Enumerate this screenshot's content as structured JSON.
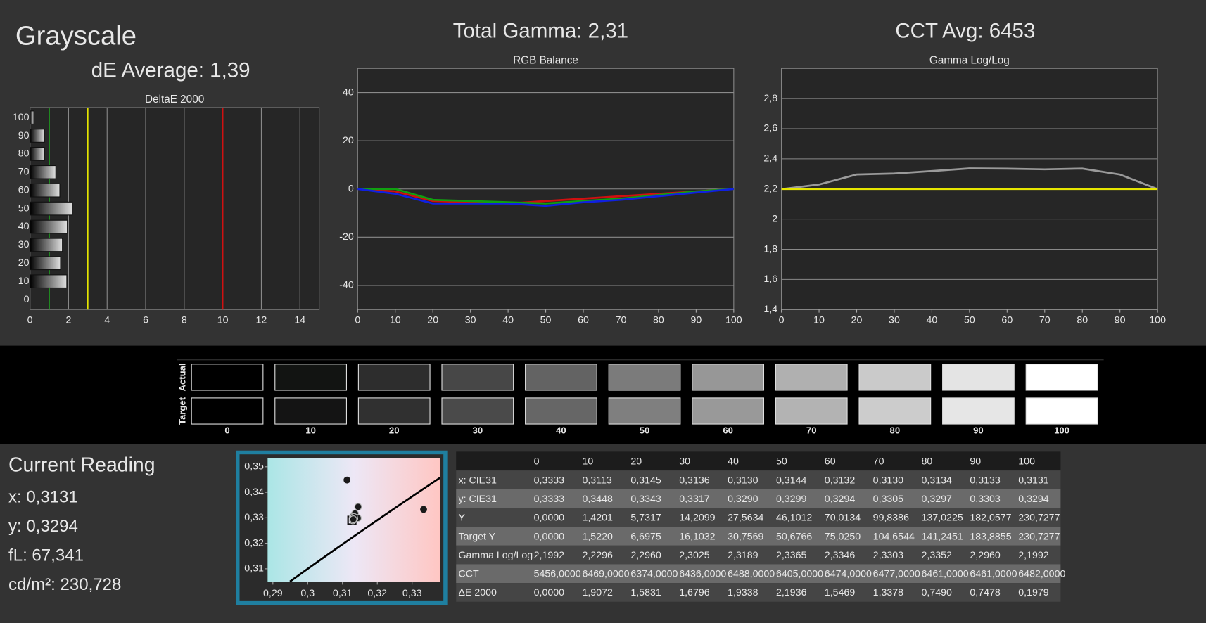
{
  "header": {
    "title": "Grayscale",
    "de_average": "dE Average: 1,39",
    "total_gamma": "Total Gamma: 2,31",
    "cct_avg": "CCT Avg: 6453"
  },
  "chart_data": [
    {
      "type": "bar",
      "horizontal": true,
      "title": "DeltaE 2000",
      "categories": [
        "0",
        "10",
        "20",
        "30",
        "40",
        "50",
        "60",
        "70",
        "80",
        "90",
        "100"
      ],
      "values": [
        0,
        1.9072,
        1.5831,
        1.6796,
        1.9338,
        2.1936,
        1.5469,
        1.3378,
        0.749,
        0.7478,
        0.1979
      ],
      "color": "#e0e0e0",
      "xlim": [
        0,
        15
      ],
      "xticks": [
        0,
        2,
        4,
        6,
        8,
        10,
        12,
        14
      ],
      "grid": true,
      "reference_lines": [
        {
          "value": 1,
          "color": "#1f9a1f"
        },
        {
          "value": 3,
          "color": "#e6e600"
        },
        {
          "value": 10,
          "color": "#d01010"
        }
      ]
    },
    {
      "type": "line",
      "title": "RGB Balance",
      "x": [
        0,
        10,
        20,
        30,
        40,
        50,
        60,
        70,
        80,
        90,
        100
      ],
      "xlim": [
        0,
        100
      ],
      "xticks": [
        0,
        10,
        20,
        30,
        40,
        50,
        60,
        70,
        80,
        90,
        100
      ],
      "ylim": [
        -50,
        50
      ],
      "yticks": [
        -40,
        -20,
        0,
        20,
        40
      ],
      "grid": true,
      "series": [
        {
          "color": "#d01010",
          "values": [
            0,
            -1,
            -5,
            -5.5,
            -6,
            -5,
            -4,
            -3,
            -2,
            -1,
            0
          ]
        },
        {
          "color": "#10a010",
          "values": [
            0,
            0,
            -4.5,
            -5,
            -5.5,
            -6,
            -5,
            -4,
            -2.5,
            -1,
            0
          ]
        },
        {
          "color": "#1020e0",
          "values": [
            0,
            -2,
            -6,
            -6,
            -6,
            -7,
            -5.5,
            -4.5,
            -3,
            -1.5,
            0
          ]
        }
      ]
    },
    {
      "type": "line",
      "title": "Gamma Log/Log",
      "x": [
        0,
        10,
        20,
        30,
        40,
        50,
        60,
        70,
        80,
        90,
        100
      ],
      "xlim": [
        0,
        100
      ],
      "xticks": [
        0,
        10,
        20,
        30,
        40,
        50,
        60,
        70,
        80,
        90,
        100
      ],
      "ylim": [
        1.4,
        3.0
      ],
      "yticks": [
        {
          "value": 1.4,
          "label": "1,4"
        },
        {
          "value": 1.6,
          "label": "1,6"
        },
        {
          "value": 1.8,
          "label": "1,8"
        },
        2,
        {
          "value": 2.2,
          "label": "2,2"
        },
        {
          "value": 2.4,
          "label": "2,4"
        },
        {
          "value": 2.6,
          "label": "2,6"
        },
        {
          "value": 2.8,
          "label": "2,8"
        }
      ],
      "grid": true,
      "series": [
        {
          "color": "#9a9a9a",
          "values": [
            2.1992,
            2.2296,
            2.296,
            2.3025,
            2.3189,
            2.3365,
            2.3346,
            2.3303,
            2.3352,
            2.296,
            2.1992
          ]
        },
        {
          "color": "#e6e600",
          "values": [
            2.2,
            2.2,
            2.2,
            2.2,
            2.2,
            2.2,
            2.2,
            2.2,
            2.2,
            2.2,
            2.2
          ]
        }
      ]
    },
    {
      "type": "scatter",
      "xlim": [
        0.2885,
        0.338
      ],
      "ylim": [
        0.305,
        0.3535
      ],
      "xticks": [
        {
          "value": 0.29,
          "label": "0,29"
        },
        {
          "value": 0.3,
          "label": "0,3"
        },
        {
          "value": 0.31,
          "label": "0,31"
        },
        {
          "value": 0.32,
          "label": "0,32"
        },
        {
          "value": 0.33,
          "label": "0,33"
        }
      ],
      "yticks": [
        {
          "value": 0.31,
          "label": "0,31"
        },
        {
          "value": 0.32,
          "label": "0,32"
        },
        {
          "value": 0.33,
          "label": "0,33"
        },
        {
          "value": 0.34,
          "label": "0,34"
        },
        {
          "value": 0.35,
          "label": "0,35"
        }
      ],
      "x": [
        0.3333,
        0.3113,
        0.3145,
        0.3136,
        0.313,
        0.3144,
        0.3132,
        0.313,
        0.3134,
        0.3133,
        0.3131
      ],
      "y": [
        0.3333,
        0.3448,
        0.3343,
        0.3317,
        0.329,
        0.3299,
        0.3294,
        0.3305,
        0.3297,
        0.3303,
        0.3294
      ],
      "color": "#1a1a1a",
      "target": {
        "x": 0.3127,
        "y": 0.329
      }
    }
  ],
  "swatches": {
    "row_labels": [
      "Actual",
      "Target"
    ],
    "levels": [
      "0",
      "10",
      "20",
      "30",
      "40",
      "50",
      "60",
      "70",
      "80",
      "90",
      "100"
    ],
    "actual_colors": [
      "#000000",
      "#121412",
      "#2d2d2d",
      "#474747",
      "#636363",
      "#7b7b7b",
      "#979797",
      "#b0b0b0",
      "#cacaca",
      "#e4e4e4",
      "#ffffff"
    ],
    "target_colors": [
      "#000000",
      "#141414",
      "#303030",
      "#4a4a4a",
      "#666666",
      "#7f7f7f",
      "#999999",
      "#b3b3b3",
      "#cccccc",
      "#e6e6e6",
      "#ffffff"
    ]
  },
  "current_reading": {
    "title": "Current Reading",
    "x": "x: 0,3131",
    "y": "y: 0,3294",
    "fl": "fL: 67,341",
    "cdm2": "cd/m²: 230,728"
  },
  "table": {
    "columns": [
      "0",
      "10",
      "20",
      "30",
      "40",
      "50",
      "60",
      "70",
      "80",
      "90",
      "100"
    ],
    "rows": [
      {
        "label": "x: CIE31",
        "cells": [
          "0,3333",
          "0,3113",
          "0,3145",
          "0,3136",
          "0,3130",
          "0,3144",
          "0,3132",
          "0,3130",
          "0,3134",
          "0,3133",
          "0,3131"
        ]
      },
      {
        "label": "y: CIE31",
        "cells": [
          "0,3333",
          "0,3448",
          "0,3343",
          "0,3317",
          "0,3290",
          "0,3299",
          "0,3294",
          "0,3305",
          "0,3297",
          "0,3303",
          "0,3294"
        ]
      },
      {
        "label": "Y",
        "cells": [
          "0,0000",
          "1,4201",
          "5,7317",
          "14,2099",
          "27,5634",
          "46,1012",
          "70,0134",
          "99,8386",
          "137,0225",
          "182,0577",
          "230,7277"
        ]
      },
      {
        "label": "Target Y",
        "cells": [
          "0,0000",
          "1,5220",
          "6,6975",
          "16,1032",
          "30,7569",
          "50,6766",
          "75,0250",
          "104,6544",
          "141,2451",
          "183,8855",
          "230,7277"
        ]
      },
      {
        "label": "Gamma Log/Log",
        "cells": [
          "2,1992",
          "2,2296",
          "2,2960",
          "2,3025",
          "2,3189",
          "2,3365",
          "2,3346",
          "2,3303",
          "2,3352",
          "2,2960",
          "2,1992"
        ]
      },
      {
        "label": "CCT",
        "cells": [
          "5456,0000",
          "6469,0000",
          "6374,0000",
          "6436,0000",
          "6488,0000",
          "6405,0000",
          "6474,0000",
          "6477,0000",
          "6461,0000",
          "6461,0000",
          "6482,0000"
        ]
      },
      {
        "label": "ΔE 2000",
        "cells": [
          "0,0000",
          "1,9072",
          "1,5831",
          "1,6796",
          "1,9338",
          "2,1936",
          "1,5469",
          "1,3378",
          "0,7490",
          "0,7478",
          "0,1979"
        ]
      }
    ]
  }
}
